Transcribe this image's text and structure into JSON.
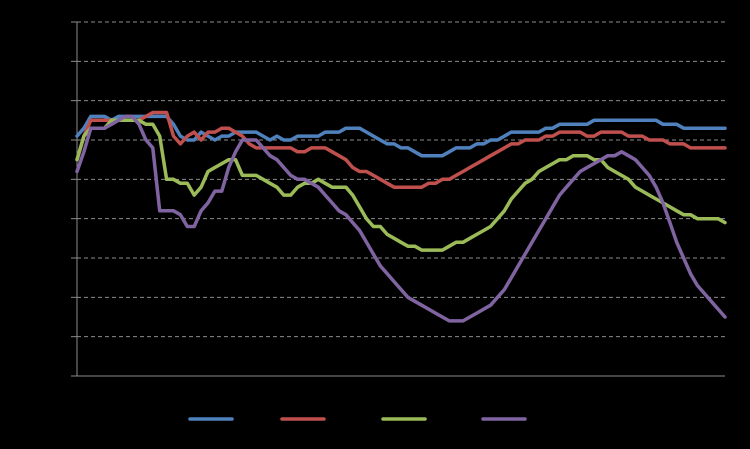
{
  "chart_data": {
    "type": "line",
    "title": "",
    "xlabel": "",
    "ylabel": "",
    "ylim": [
      0,
      9
    ],
    "grid": true,
    "legend_position": "bottom",
    "n_points": 95,
    "series": [
      {
        "color": "#4F81BD",
        "values": [
          6.1,
          6.3,
          6.6,
          6.6,
          6.6,
          6.5,
          6.6,
          6.6,
          6.6,
          6.6,
          6.6,
          6.6,
          6.6,
          6.6,
          6.4,
          6.1,
          6.0,
          6.0,
          6.2,
          6.1,
          6.0,
          6.1,
          6.1,
          6.2,
          6.2,
          6.2,
          6.2,
          6.1,
          6.0,
          6.1,
          6.0,
          6.0,
          6.1,
          6.1,
          6.1,
          6.1,
          6.2,
          6.2,
          6.2,
          6.3,
          6.3,
          6.3,
          6.2,
          6.1,
          6.0,
          5.9,
          5.9,
          5.8,
          5.8,
          5.7,
          5.6,
          5.6,
          5.6,
          5.6,
          5.7,
          5.8,
          5.8,
          5.8,
          5.9,
          5.9,
          6.0,
          6.0,
          6.1,
          6.2,
          6.2,
          6.2,
          6.2,
          6.2,
          6.3,
          6.3,
          6.4,
          6.4,
          6.4,
          6.4,
          6.4,
          6.5,
          6.5,
          6.5,
          6.5,
          6.5,
          6.5,
          6.5,
          6.5,
          6.5,
          6.5,
          6.4,
          6.4,
          6.4,
          6.3,
          6.3,
          6.3,
          6.3,
          6.3,
          6.3,
          6.3
        ]
      },
      {
        "color": "#C0504D",
        "values": [
          5.5,
          6.1,
          6.5,
          6.5,
          6.5,
          6.5,
          6.5,
          6.5,
          6.5,
          6.5,
          6.6,
          6.7,
          6.7,
          6.7,
          6.1,
          5.9,
          6.1,
          6.2,
          6.0,
          6.2,
          6.2,
          6.3,
          6.3,
          6.2,
          6.1,
          5.9,
          5.8,
          5.8,
          5.8,
          5.8,
          5.8,
          5.8,
          5.7,
          5.7,
          5.8,
          5.8,
          5.8,
          5.7,
          5.6,
          5.5,
          5.3,
          5.2,
          5.2,
          5.1,
          5.0,
          4.9,
          4.8,
          4.8,
          4.8,
          4.8,
          4.8,
          4.9,
          4.9,
          5.0,
          5.0,
          5.1,
          5.2,
          5.3,
          5.4,
          5.5,
          5.6,
          5.7,
          5.8,
          5.9,
          5.9,
          6.0,
          6.0,
          6.0,
          6.1,
          6.1,
          6.2,
          6.2,
          6.2,
          6.2,
          6.1,
          6.1,
          6.2,
          6.2,
          6.2,
          6.2,
          6.1,
          6.1,
          6.1,
          6.0,
          6.0,
          6.0,
          5.9,
          5.9,
          5.9,
          5.8,
          5.8,
          5.8,
          5.8,
          5.8,
          5.8
        ]
      },
      {
        "color": "#9BBB59",
        "values": [
          5.5,
          6.1,
          6.3,
          6.3,
          6.3,
          6.5,
          6.5,
          6.5,
          6.5,
          6.5,
          6.4,
          6.4,
          6.1,
          5.0,
          5.0,
          4.9,
          4.9,
          4.6,
          4.8,
          5.2,
          5.3,
          5.4,
          5.5,
          5.5,
          5.1,
          5.1,
          5.1,
          5.0,
          4.9,
          4.8,
          4.6,
          4.6,
          4.8,
          4.9,
          4.9,
          5.0,
          4.9,
          4.8,
          4.8,
          4.8,
          4.6,
          4.3,
          4.0,
          3.8,
          3.8,
          3.6,
          3.5,
          3.4,
          3.3,
          3.3,
          3.2,
          3.2,
          3.2,
          3.2,
          3.3,
          3.4,
          3.4,
          3.5,
          3.6,
          3.7,
          3.8,
          4.0,
          4.2,
          4.5,
          4.7,
          4.9,
          5.0,
          5.2,
          5.3,
          5.4,
          5.5,
          5.5,
          5.6,
          5.6,
          5.6,
          5.5,
          5.5,
          5.3,
          5.2,
          5.1,
          5.0,
          4.8,
          4.7,
          4.6,
          4.5,
          4.4,
          4.3,
          4.2,
          4.1,
          4.1,
          4.0,
          4.0,
          4.0,
          4.0,
          3.9
        ]
      },
      {
        "color": "#8064A2",
        "values": [
          5.2,
          5.7,
          6.3,
          6.3,
          6.3,
          6.4,
          6.5,
          6.6,
          6.6,
          6.4,
          6.0,
          5.8,
          4.2,
          4.2,
          4.2,
          4.1,
          3.8,
          3.8,
          4.2,
          4.4,
          4.7,
          4.7,
          5.3,
          5.7,
          6.0,
          6.0,
          6.0,
          5.8,
          5.6,
          5.5,
          5.3,
          5.1,
          5.0,
          5.0,
          4.9,
          4.8,
          4.6,
          4.4,
          4.2,
          4.1,
          3.9,
          3.7,
          3.4,
          3.1,
          2.8,
          2.6,
          2.4,
          2.2,
          2.0,
          1.9,
          1.8,
          1.7,
          1.6,
          1.5,
          1.4,
          1.4,
          1.4,
          1.5,
          1.6,
          1.7,
          1.8,
          2.0,
          2.2,
          2.5,
          2.8,
          3.1,
          3.4,
          3.7,
          4.0,
          4.3,
          4.6,
          4.8,
          5.0,
          5.2,
          5.3,
          5.4,
          5.5,
          5.6,
          5.6,
          5.7,
          5.6,
          5.5,
          5.3,
          5.1,
          4.8,
          4.4,
          3.9,
          3.4,
          3.0,
          2.6,
          2.3,
          2.1,
          1.9,
          1.7,
          1.5
        ]
      }
    ]
  }
}
